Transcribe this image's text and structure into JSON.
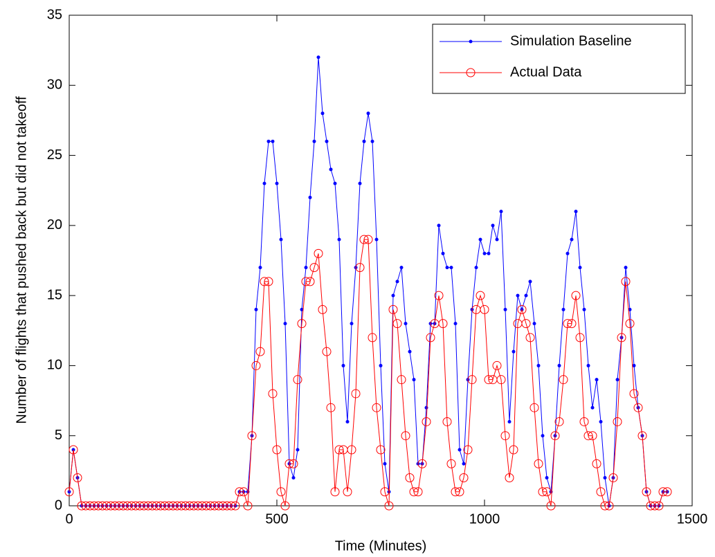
{
  "chart_data": {
    "type": "line",
    "xlabel": "Time (Minutes)",
    "ylabel": "Number of flights that pushed back but did not takeoff",
    "x": [
      0,
      10,
      20,
      30,
      40,
      50,
      60,
      70,
      80,
      90,
      100,
      110,
      120,
      130,
      140,
      150,
      160,
      170,
      180,
      190,
      200,
      210,
      220,
      230,
      240,
      250,
      260,
      270,
      280,
      290,
      300,
      310,
      320,
      330,
      340,
      350,
      360,
      370,
      380,
      390,
      400,
      410,
      420,
      430,
      440,
      450,
      460,
      470,
      480,
      490,
      500,
      510,
      520,
      530,
      540,
      550,
      560,
      570,
      580,
      590,
      600,
      610,
      620,
      630,
      640,
      650,
      660,
      670,
      680,
      690,
      700,
      710,
      720,
      730,
      740,
      750,
      760,
      770,
      780,
      790,
      800,
      810,
      820,
      830,
      840,
      850,
      860,
      870,
      880,
      890,
      900,
      910,
      920,
      930,
      940,
      950,
      960,
      970,
      980,
      990,
      1000,
      1010,
      1020,
      1030,
      1040,
      1050,
      1060,
      1070,
      1080,
      1090,
      1100,
      1110,
      1120,
      1130,
      1140,
      1150,
      1160,
      1170,
      1180,
      1190,
      1200,
      1210,
      1220,
      1230,
      1240,
      1250,
      1260,
      1270,
      1280,
      1290,
      1300,
      1310,
      1320,
      1330,
      1340,
      1350,
      1360,
      1370,
      1380,
      1390,
      1400,
      1410,
      1420,
      1430,
      1440
    ],
    "series": [
      {
        "name": "Simulation Baseline",
        "color": "#0000ff",
        "marker": "dot",
        "values": [
          1,
          4,
          2,
          0,
          0,
          0,
          0,
          0,
          0,
          0,
          0,
          0,
          0,
          0,
          0,
          0,
          0,
          0,
          0,
          0,
          0,
          0,
          0,
          0,
          0,
          0,
          0,
          0,
          0,
          0,
          0,
          0,
          0,
          0,
          0,
          0,
          0,
          0,
          0,
          0,
          0,
          1,
          1,
          1,
          5,
          14,
          17,
          23,
          26,
          26,
          23,
          19,
          13,
          3,
          2,
          4,
          14,
          17,
          22,
          26,
          32,
          28,
          26,
          24,
          23,
          19,
          10,
          6,
          13,
          17,
          23,
          26,
          28,
          26,
          19,
          10,
          3,
          1,
          15,
          16,
          17,
          13,
          11,
          9,
          3,
          3,
          7,
          13,
          13,
          20,
          18,
          17,
          17,
          13,
          4,
          3,
          9,
          14,
          17,
          19,
          18,
          18,
          20,
          19,
          21,
          14,
          6,
          11,
          15,
          14,
          15,
          16,
          13,
          10,
          5,
          2,
          1,
          5,
          10,
          14,
          18,
          19,
          21,
          17,
          14,
          10,
          7,
          9,
          6,
          2,
          0,
          2,
          9,
          12,
          17,
          14,
          10,
          7,
          5,
          1,
          0,
          0,
          0,
          1,
          1
        ]
      },
      {
        "name": "Actual Data",
        "color": "#ff0000",
        "marker": "circle",
        "values": [
          1,
          4,
          2,
          0,
          0,
          0,
          0,
          0,
          0,
          0,
          0,
          0,
          0,
          0,
          0,
          0,
          0,
          0,
          0,
          0,
          0,
          0,
          0,
          0,
          0,
          0,
          0,
          0,
          0,
          0,
          0,
          0,
          0,
          0,
          0,
          0,
          0,
          0,
          0,
          0,
          0,
          1,
          1,
          0,
          5,
          10,
          11,
          16,
          16,
          8,
          4,
          1,
          0,
          3,
          3,
          9,
          13,
          16,
          16,
          17,
          18,
          14,
          11,
          7,
          1,
          4,
          4,
          1,
          4,
          8,
          17,
          19,
          19,
          12,
          7,
          4,
          1,
          0,
          14,
          13,
          9,
          5,
          2,
          1,
          1,
          3,
          6,
          12,
          13,
          15,
          13,
          6,
          3,
          1,
          1,
          2,
          4,
          9,
          14,
          15,
          14,
          9,
          9,
          10,
          9,
          5,
          2,
          4,
          13,
          14,
          13,
          12,
          7,
          3,
          1,
          1,
          0,
          5,
          6,
          9,
          13,
          13,
          15,
          12,
          6,
          5,
          5,
          3,
          1,
          0,
          0,
          2,
          6,
          12,
          16,
          13,
          8,
          7,
          5,
          1,
          0,
          0,
          0,
          1,
          1
        ]
      }
    ],
    "xlim": [
      0,
      1500
    ],
    "xticks": [
      0,
      500,
      1000,
      1500
    ],
    "ylim": [
      0,
      35
    ],
    "yticks": [
      0,
      5,
      10,
      15,
      20,
      25,
      30,
      35
    ],
    "legend": "northeast"
  }
}
